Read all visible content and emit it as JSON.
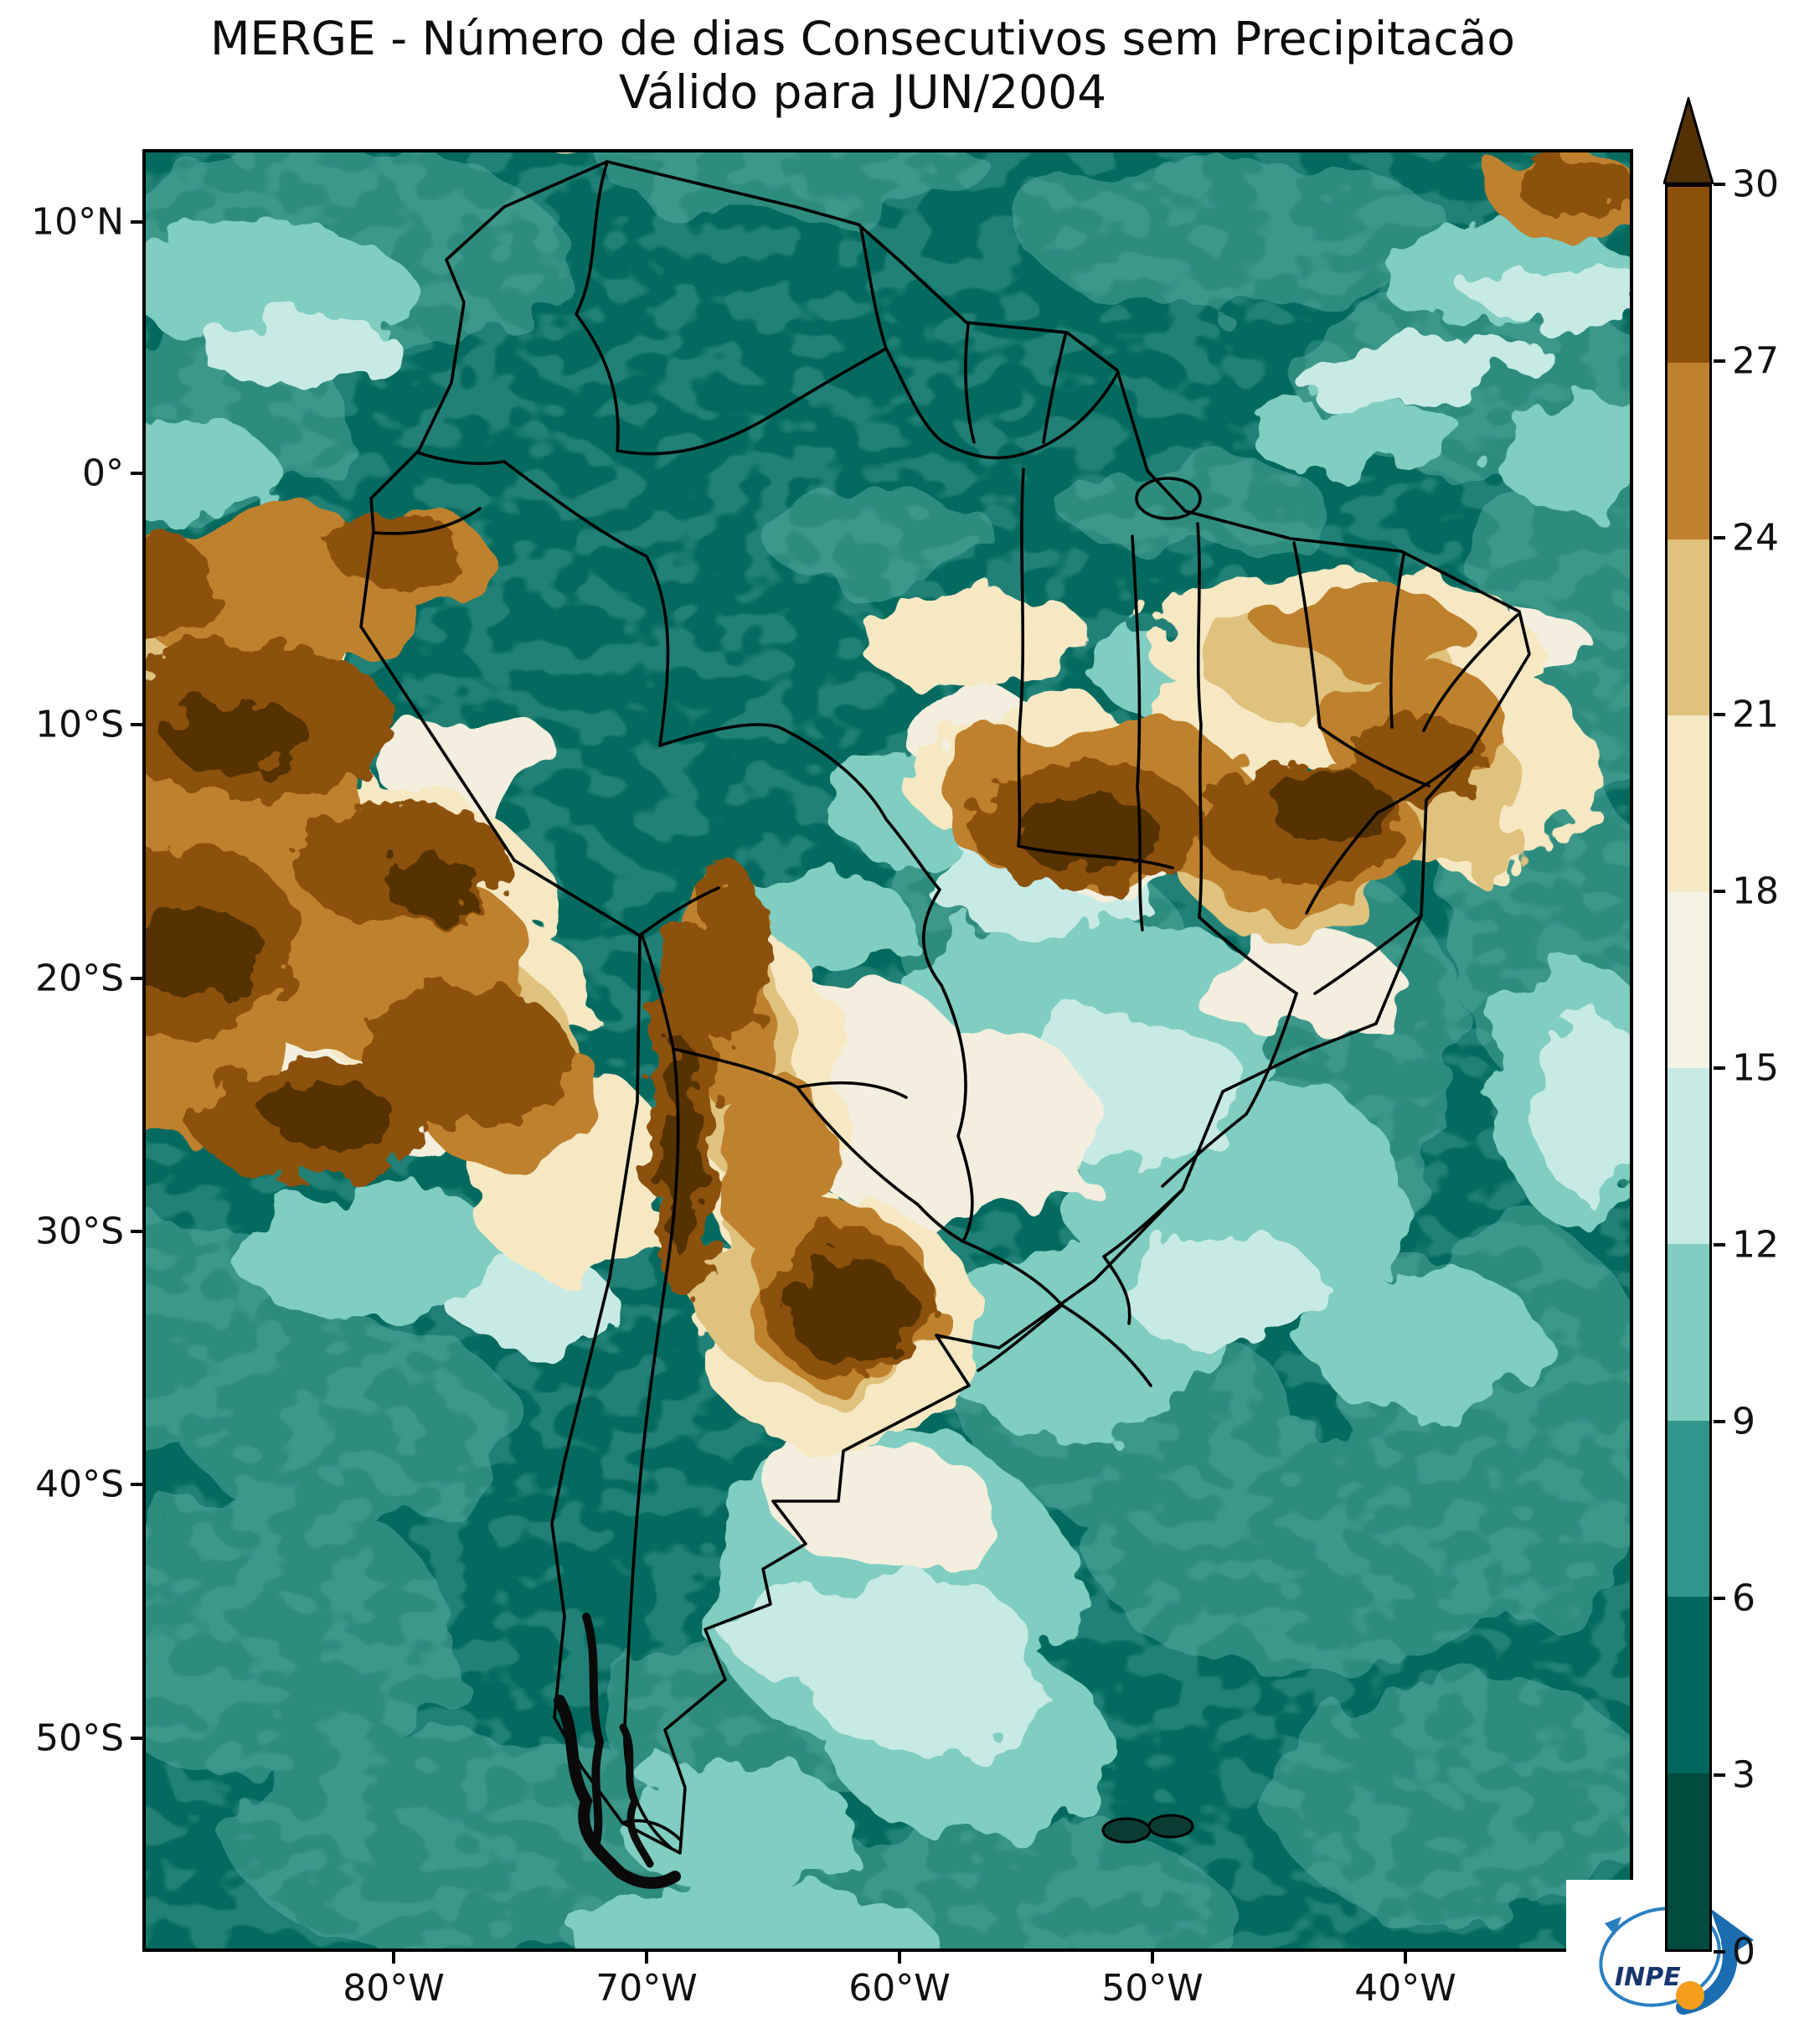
{
  "title": {
    "line1": "MERGE - Número de dias Consecutivos sem Precipitacão",
    "line2": "Válido para JUN/2004"
  },
  "axes": {
    "lat_labels": [
      "10°N",
      "0°",
      "10°S",
      "20°S",
      "30°S",
      "40°S",
      "50°S"
    ],
    "lon_labels": [
      "80°W",
      "70°W",
      "60°W",
      "50°W",
      "40°W"
    ]
  },
  "colorbar": {
    "tick_labels_top_to_bottom": [
      "30",
      "27",
      "24",
      "21",
      "18",
      "15",
      "12",
      "9",
      "6",
      "3",
      "0"
    ],
    "segment_colors_top_to_bottom": [
      "#8c510a",
      "#bf812d",
      "#dfc27d",
      "#f6e8c3",
      "#f5f2e6",
      "#c7eae5",
      "#80cdc1",
      "#2f978b",
      "#01665e",
      "#004a3e"
    ],
    "arrow_color": "#543005",
    "outline_color": "#000000"
  },
  "map": {
    "palette": {
      "base_teal": "#046a5f",
      "mid_teal": "#2e8c7f",
      "light_teal": "#80cdc1",
      "pale_teal": "#c7eae5",
      "cream": "#f3eedd",
      "tan_light": "#f6e8c3",
      "tan_deep": "#dfc27d",
      "brown": "#bf812d",
      "dark_brown": "#8c510a",
      "darkest_brown": "#543005",
      "border": "#000000"
    }
  },
  "logo": {
    "text": "INPE",
    "arrow_blue": "#1b6cb0",
    "orbit_blue": "#2a7fc1",
    "ball_orange": "#f59e1d",
    "text_navy": "#17356e"
  }
}
